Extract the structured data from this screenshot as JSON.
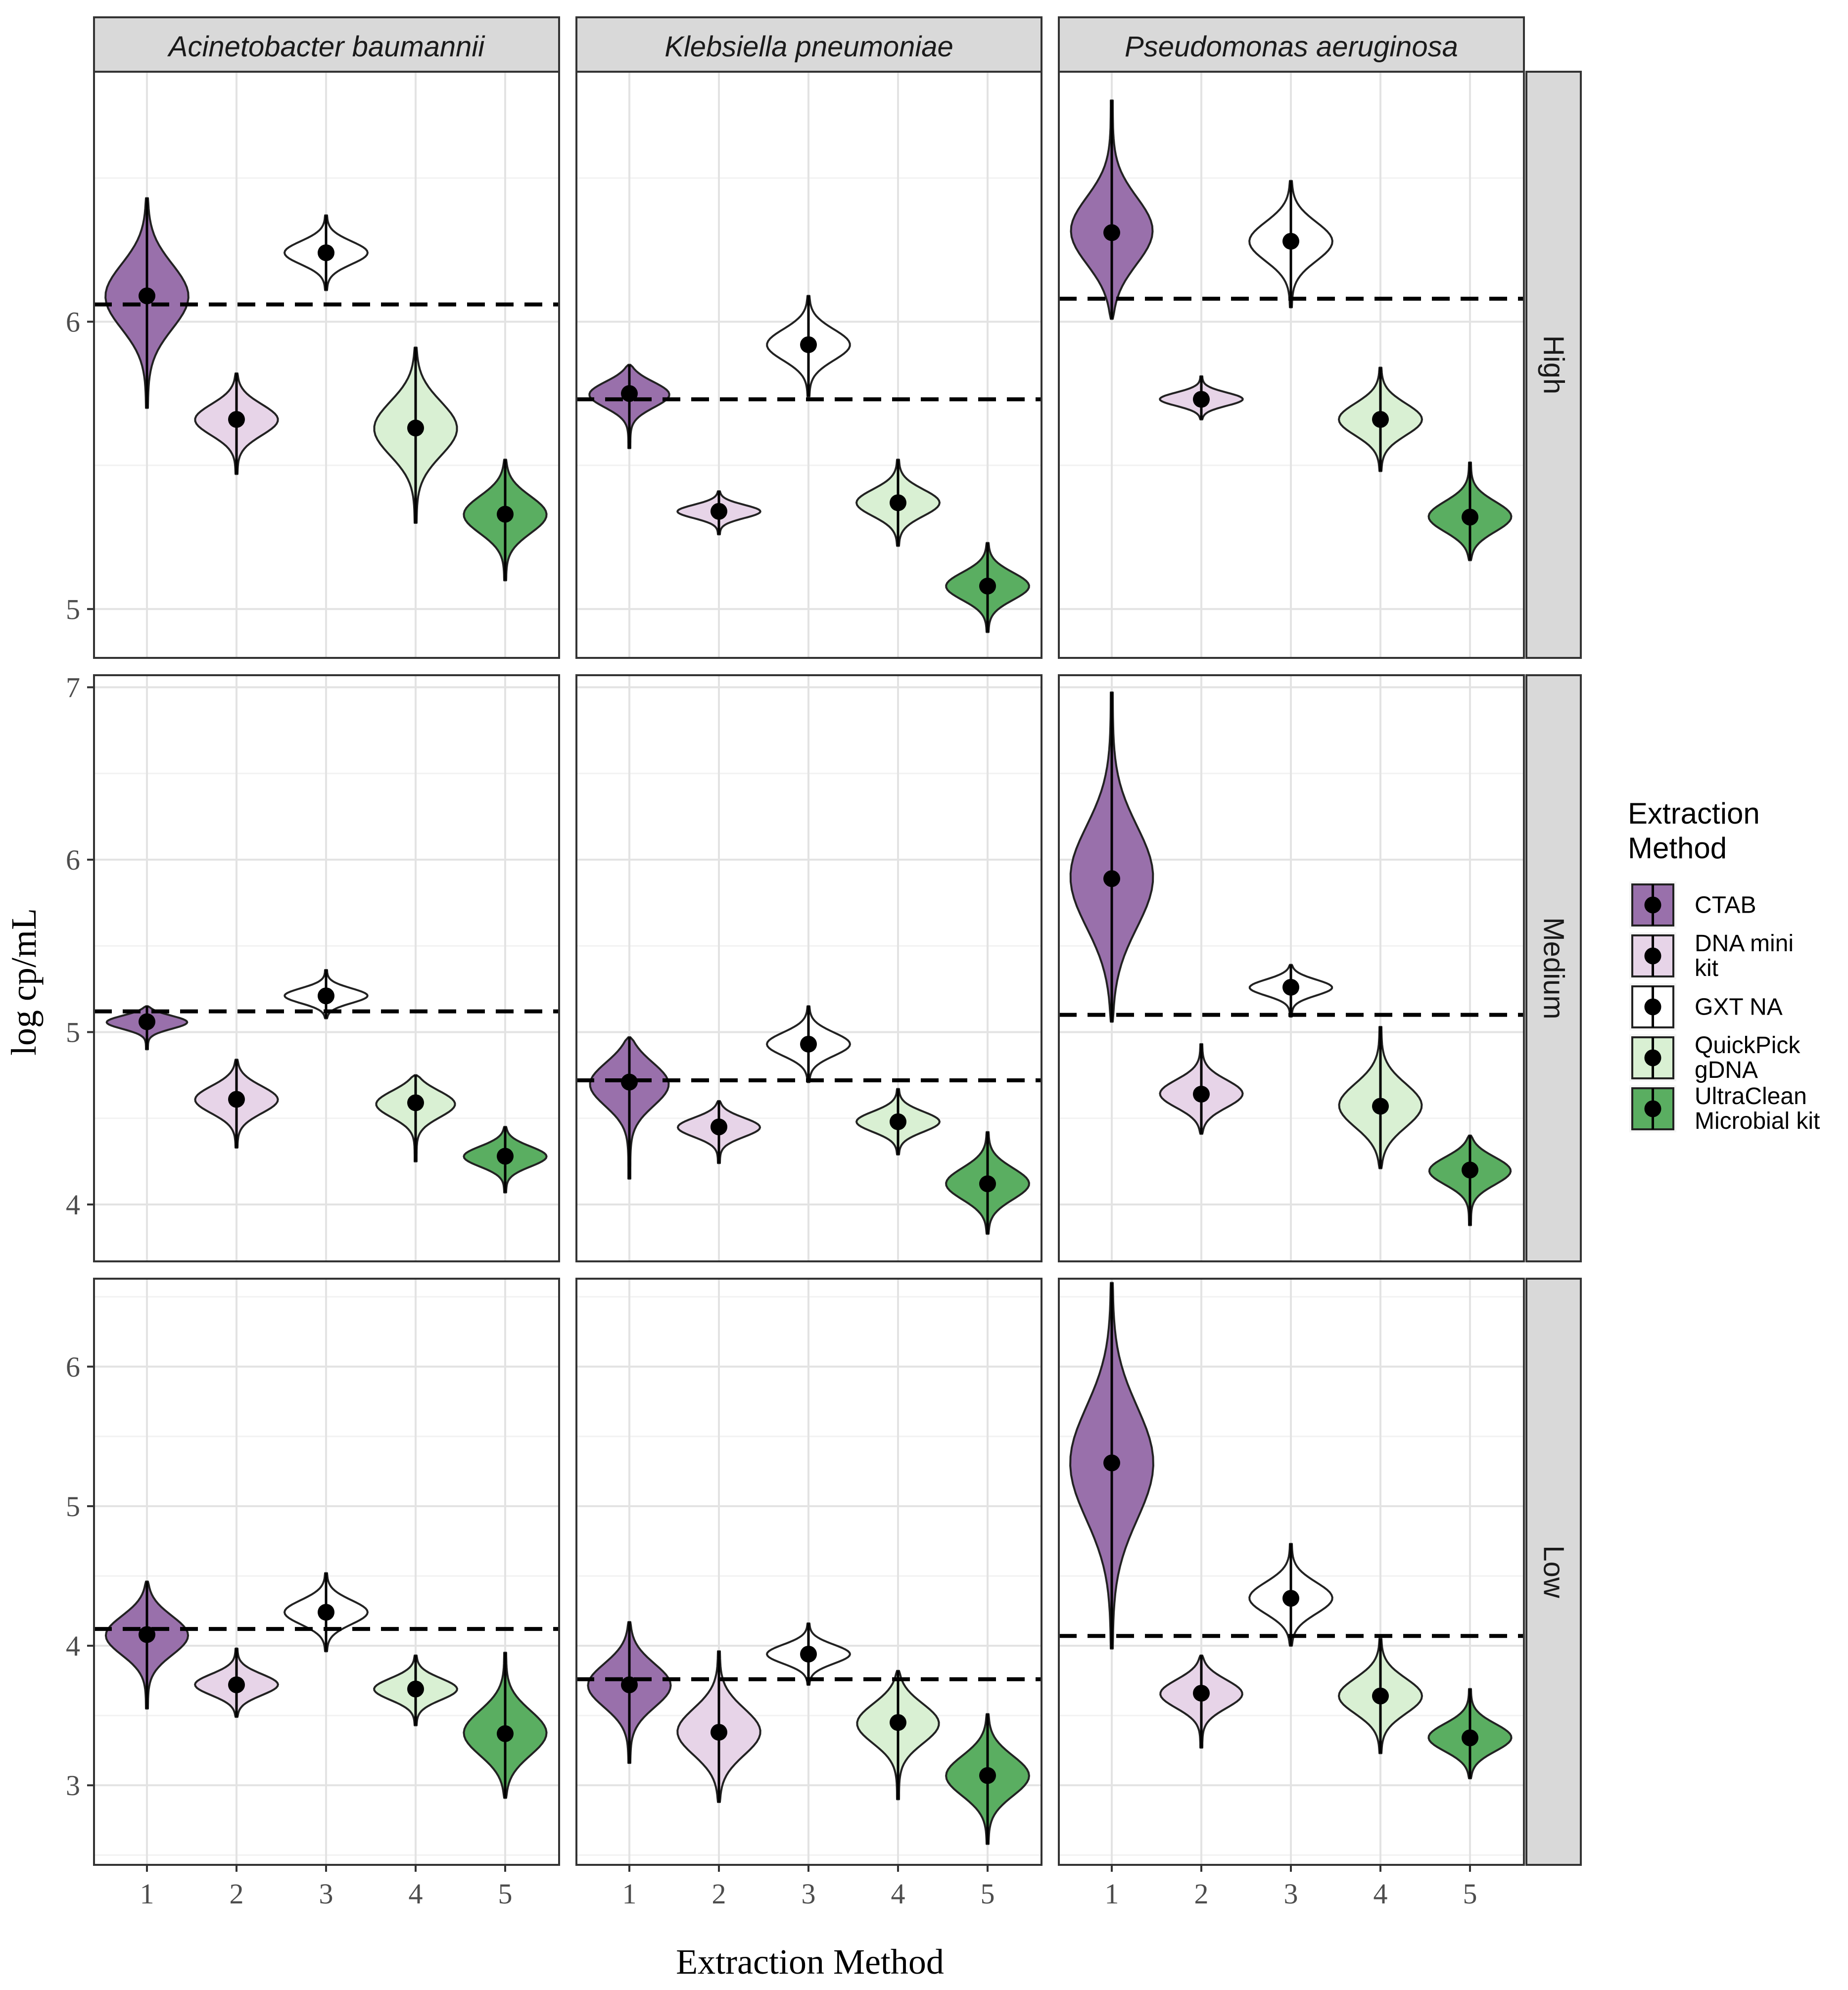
{
  "chart_data": {
    "type": "violin",
    "xlabel": "Extraction Method",
    "ylabel": "log cp/mL",
    "x_categories": [
      "1",
      "2",
      "3",
      "4",
      "5"
    ],
    "facet_columns": [
      "Acinetobacter baumannii",
      "Klebsiella pneumoniae",
      "Pseudomonas aeruginosa"
    ],
    "facet_rows": [
      "High",
      "Medium",
      "Low"
    ],
    "row_scales": [
      {
        "row": "High",
        "ylim": [
          4.83,
          6.87
        ],
        "ticks": [
          5,
          6
        ]
      },
      {
        "row": "Medium",
        "ylim": [
          3.67,
          7.07
        ],
        "ticks": [
          4,
          5,
          6,
          7
        ]
      },
      {
        "row": "Low",
        "ylim": [
          2.43,
          6.63
        ],
        "ticks": [
          3,
          4,
          5,
          6
        ]
      }
    ],
    "legend": {
      "title": "Extraction\nMethod",
      "entries": [
        {
          "label": "CTAB",
          "color": "#9970ab"
        },
        {
          "label": "DNA mini\nkit",
          "color": "#e7d4e8"
        },
        {
          "label": "GXT NA",
          "color": "#ffffff"
        },
        {
          "label": "QuickPick\ngDNA",
          "color": "#d9f0d3"
        },
        {
          "label": "UltraClean\nMicrobial kit",
          "color": "#5aae61"
        }
      ]
    },
    "panels": [
      {
        "column": "Acinetobacter baumannii",
        "row": "High",
        "reference_line": 6.06,
        "medians": [
          6.09,
          5.66,
          6.24,
          5.63,
          5.33
        ],
        "ranges": [
          [
            5.7,
            6.43
          ],
          [
            5.47,
            5.82
          ],
          [
            6.11,
            6.37
          ],
          [
            5.3,
            5.91
          ],
          [
            5.1,
            5.52
          ]
        ]
      },
      {
        "column": "Klebsiella pneumoniae",
        "row": "High",
        "reference_line": 5.73,
        "medians": [
          5.75,
          5.34,
          5.92,
          5.37,
          5.08
        ],
        "ranges": [
          [
            5.56,
            5.85
          ],
          [
            5.26,
            5.41
          ],
          [
            5.74,
            6.09
          ],
          [
            5.22,
            5.52
          ],
          [
            4.92,
            5.23
          ]
        ]
      },
      {
        "column": "Pseudomonas aeruginosa",
        "row": "High",
        "reference_line": 6.08,
        "medians": [
          6.31,
          5.73,
          6.28,
          5.66,
          5.32
        ],
        "ranges": [
          [
            6.01,
            6.77
          ],
          [
            5.66,
            5.81
          ],
          [
            6.05,
            6.49
          ],
          [
            5.48,
            5.84
          ],
          [
            5.17,
            5.51
          ]
        ]
      },
      {
        "column": "Acinetobacter baumannii",
        "row": "Medium",
        "reference_line": 5.12,
        "medians": [
          5.06,
          4.61,
          5.21,
          4.59,
          4.28
        ],
        "ranges": [
          [
            4.9,
            5.15
          ],
          [
            4.33,
            4.84
          ],
          [
            5.08,
            5.36
          ],
          [
            4.25,
            4.75
          ],
          [
            4.07,
            4.45
          ]
        ]
      },
      {
        "column": "Klebsiella pneumoniae",
        "row": "Medium",
        "reference_line": 4.72,
        "medians": [
          4.71,
          4.45,
          4.93,
          4.48,
          4.12
        ],
        "ranges": [
          [
            4.15,
            4.97
          ],
          [
            4.24,
            4.6
          ],
          [
            4.71,
            5.15
          ],
          [
            4.29,
            4.67
          ],
          [
            3.83,
            4.42
          ]
        ]
      },
      {
        "column": "Pseudomonas aeruginosa",
        "row": "Medium",
        "reference_line": 5.1,
        "medians": [
          5.89,
          4.64,
          5.26,
          4.57,
          4.2
        ],
        "ranges": [
          [
            5.06,
            6.97
          ],
          [
            4.41,
            4.93
          ],
          [
            5.09,
            5.39
          ],
          [
            4.21,
            5.03
          ],
          [
            3.88,
            4.4
          ]
        ]
      },
      {
        "column": "Acinetobacter baumannii",
        "row": "Low",
        "reference_line": 4.12,
        "medians": [
          4.08,
          3.72,
          4.24,
          3.69,
          3.37
        ],
        "ranges": [
          [
            3.55,
            4.46
          ],
          [
            3.49,
            3.98
          ],
          [
            3.96,
            4.52
          ],
          [
            3.43,
            3.93
          ],
          [
            2.91,
            3.95
          ]
        ]
      },
      {
        "column": "Klebsiella pneumoniae",
        "row": "Low",
        "reference_line": 3.76,
        "medians": [
          3.72,
          3.38,
          3.94,
          3.45,
          3.07
        ],
        "ranges": [
          [
            3.16,
            4.17
          ],
          [
            2.88,
            3.96
          ],
          [
            3.72,
            4.16
          ],
          [
            2.9,
            3.82
          ],
          [
            2.58,
            3.51
          ]
        ]
      },
      {
        "column": "Pseudomonas aeruginosa",
        "row": "Low",
        "reference_line": 4.07,
        "medians": [
          5.31,
          3.66,
          4.34,
          3.64,
          3.34
        ],
        "ranges": [
          [
            3.98,
            6.6
          ],
          [
            3.27,
            3.93
          ],
          [
            4.0,
            4.73
          ],
          [
            3.23,
            4.05
          ],
          [
            3.05,
            3.69
          ]
        ]
      }
    ]
  }
}
